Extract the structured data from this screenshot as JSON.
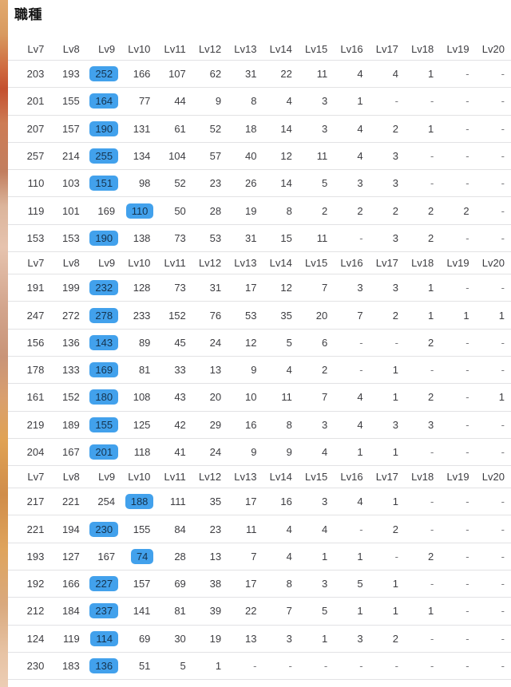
{
  "title": "職種",
  "table": {
    "columns": [
      "Lv7",
      "Lv8",
      "Lv9",
      "Lv10",
      "Lv11",
      "Lv12",
      "Lv13",
      "Lv14",
      "Lv15",
      "Lv16",
      "Lv17",
      "Lv18",
      "Lv19",
      "Lv20"
    ],
    "empty_marker": "-",
    "sections": [
      {
        "rows": [
          {
            "values": [
              "203",
              "193",
              "252",
              "166",
              "107",
              "62",
              "31",
              "22",
              "11",
              "4",
              "4",
              "1",
              "-",
              "-"
            ],
            "highlight": 2
          },
          {
            "values": [
              "201",
              "155",
              "164",
              "77",
              "44",
              "9",
              "8",
              "4",
              "3",
              "1",
              "-",
              "-",
              "-",
              "-"
            ],
            "highlight": 2
          },
          {
            "values": [
              "207",
              "157",
              "190",
              "131",
              "61",
              "52",
              "18",
              "14",
              "3",
              "4",
              "2",
              "1",
              "-",
              "-"
            ],
            "highlight": 2
          },
          {
            "values": [
              "257",
              "214",
              "255",
              "134",
              "104",
              "57",
              "40",
              "12",
              "11",
              "4",
              "3",
              "-",
              "-",
              "-"
            ],
            "highlight": 2
          },
          {
            "values": [
              "110",
              "103",
              "151",
              "98",
              "52",
              "23",
              "26",
              "14",
              "5",
              "3",
              "3",
              "-",
              "-",
              "-"
            ],
            "highlight": 2
          },
          {
            "values": [
              "119",
              "101",
              "169",
              "110",
              "50",
              "28",
              "19",
              "8",
              "2",
              "2",
              "2",
              "2",
              "2",
              "-"
            ],
            "highlight": 3
          },
          {
            "values": [
              "153",
              "153",
              "190",
              "138",
              "73",
              "53",
              "31",
              "15",
              "11",
              "-",
              "3",
              "2",
              "-",
              "-"
            ],
            "highlight": 2
          }
        ]
      },
      {
        "rows": [
          {
            "values": [
              "191",
              "199",
              "232",
              "128",
              "73",
              "31",
              "17",
              "12",
              "7",
              "3",
              "3",
              "1",
              "-",
              "-"
            ],
            "highlight": 2
          },
          {
            "values": [
              "247",
              "272",
              "278",
              "233",
              "152",
              "76",
              "53",
              "35",
              "20",
              "7",
              "2",
              "1",
              "1",
              "1"
            ],
            "highlight": 2
          },
          {
            "values": [
              "156",
              "136",
              "143",
              "89",
              "45",
              "24",
              "12",
              "5",
              "6",
              "-",
              "-",
              "2",
              "-",
              "-"
            ],
            "highlight": 2
          },
          {
            "values": [
              "178",
              "133",
              "169",
              "81",
              "33",
              "13",
              "9",
              "4",
              "2",
              "-",
              "1",
              "-",
              "-",
              "-"
            ],
            "highlight": 2
          },
          {
            "values": [
              "161",
              "152",
              "180",
              "108",
              "43",
              "20",
              "10",
              "11",
              "7",
              "4",
              "1",
              "2",
              "-",
              "1"
            ],
            "highlight": 2
          },
          {
            "values": [
              "219",
              "189",
              "155",
              "125",
              "42",
              "29",
              "16",
              "8",
              "3",
              "4",
              "3",
              "3",
              "-",
              "-"
            ],
            "highlight": 2
          },
          {
            "values": [
              "204",
              "167",
              "201",
              "118",
              "41",
              "24",
              "9",
              "9",
              "4",
              "1",
              "1",
              "-",
              "-",
              "-"
            ],
            "highlight": 2
          }
        ]
      },
      {
        "rows": [
          {
            "values": [
              "217",
              "221",
              "254",
              "188",
              "111",
              "35",
              "17",
              "16",
              "3",
              "4",
              "1",
              "-",
              "-",
              "-"
            ],
            "highlight": 3
          },
          {
            "values": [
              "221",
              "194",
              "230",
              "155",
              "84",
              "23",
              "11",
              "4",
              "4",
              "-",
              "2",
              "-",
              "-",
              "-"
            ],
            "highlight": 2
          },
          {
            "values": [
              "193",
              "127",
              "167",
              "74",
              "28",
              "13",
              "7",
              "4",
              "1",
              "1",
              "-",
              "2",
              "-",
              "-"
            ],
            "highlight": 3
          },
          {
            "values": [
              "192",
              "166",
              "227",
              "157",
              "69",
              "38",
              "17",
              "8",
              "3",
              "5",
              "1",
              "-",
              "-",
              "-"
            ],
            "highlight": 2
          },
          {
            "values": [
              "212",
              "184",
              "237",
              "141",
              "81",
              "39",
              "22",
              "7",
              "5",
              "1",
              "1",
              "1",
              "-",
              "-"
            ],
            "highlight": 2
          },
          {
            "values": [
              "124",
              "119",
              "114",
              "69",
              "30",
              "19",
              "13",
              "3",
              "1",
              "3",
              "2",
              "-",
              "-",
              "-"
            ],
            "highlight": 2
          },
          {
            "values": [
              "230",
              "183",
              "136",
              "51",
              "5",
              "1",
              "-",
              "-",
              "-",
              "-",
              "-",
              "-",
              "-",
              "-"
            ],
            "highlight": 2
          }
        ]
      }
    ]
  },
  "colors": {
    "highlight_bg": "#42a1ec",
    "highlight_text": "#15334e",
    "text": "#3c3c40",
    "divider": "#e2e2e4"
  }
}
